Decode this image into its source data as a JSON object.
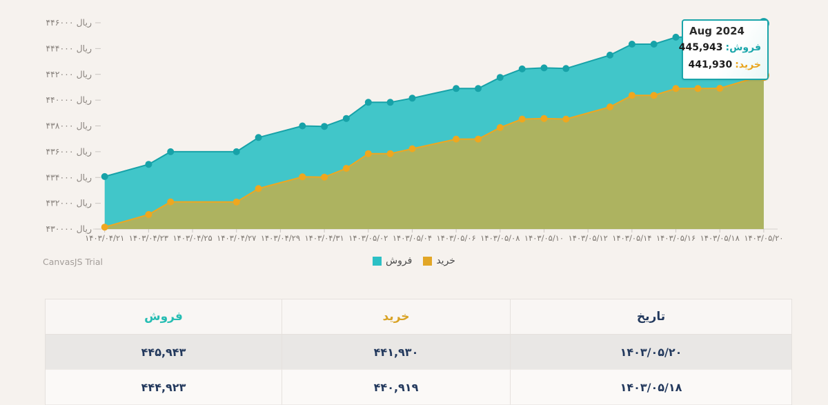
{
  "chart": {
    "watermark": "CanvasJS Trial",
    "tooltip": {
      "title": "Aug 2024",
      "rows": [
        {
          "label": "فروش:",
          "value": "445,943",
          "color": "#1aa6ab"
        },
        {
          "label": "خرید:",
          "value": "441,930",
          "color": "#e9a51e"
        }
      ]
    },
    "legend": [
      {
        "label": "فروش",
        "color": "#2cc0c5"
      },
      {
        "label": "خرید",
        "color": "#e2a626"
      }
    ]
  },
  "chart_data": {
    "type": "area",
    "title": "",
    "ylabel": "ریال",
    "ylim": [
      430000,
      446000
    ],
    "y_tick_step": 2000,
    "grid": false,
    "legend_position": "bottom",
    "y_ticks": [
      "۴۴۶۰۰۰ ریال",
      "۴۴۴۰۰۰ ریال",
      "۴۴۲۰۰۰ ریال",
      "۴۴۰۰۰۰ ریال",
      "۴۳۸۰۰۰ ریال",
      "۴۳۶۰۰۰ ریال",
      "۴۳۴۰۰۰ ریال",
      "۴۳۲۰۰۰ ریال",
      "۴۳۰۰۰۰ ریال"
    ],
    "x_ticks": [
      {
        "label": "۱۴۰۳/۰۴/۲۱",
        "d": 0
      },
      {
        "label": "۱۴۰۳/۰۴/۲۳",
        "d": 2
      },
      {
        "label": "۱۴۰۳/۰۴/۲۵",
        "d": 4
      },
      {
        "label": "۱۴۰۳/۰۴/۲۷",
        "d": 6
      },
      {
        "label": "۱۴۰۳/۰۴/۲۹",
        "d": 8
      },
      {
        "label": "۱۴۰۳/۰۴/۳۱",
        "d": 10
      },
      {
        "label": "۱۴۰۳/۰۵/۰۲",
        "d": 12
      },
      {
        "label": "۱۴۰۳/۰۵/۰۴",
        "d": 14
      },
      {
        "label": "۱۴۰۳/۰۵/۰۶",
        "d": 16
      },
      {
        "label": "۱۴۰۳/۰۵/۰۸",
        "d": 18
      },
      {
        "label": "۱۴۰۳/۰۵/۱۰",
        "d": 20
      },
      {
        "label": "۱۴۰۳/۰۵/۱۲",
        "d": 22
      },
      {
        "label": "۱۴۰۳/۰۵/۱۴",
        "d": 24
      },
      {
        "label": "۱۴۰۳/۰۵/۱۶",
        "d": 26
      },
      {
        "label": "۱۴۰۳/۰۵/۱۸",
        "d": 28
      },
      {
        "label": "۱۴۰۳/۰۵/۲۰",
        "d": 30
      }
    ],
    "dates": [
      "۱۴۰۳/۰۴/۲۱",
      "۱۴۰۳/۰۴/۲۳",
      "۱۴۰۳/۰۴/۲۴",
      "۱۴۰۳/۰۴/۲۷",
      "۱۴۰۳/۰۴/۲۸",
      "۱۴۰۳/۰۴/۳۰",
      "۱۴۰۳/۰۴/۳۱",
      "۱۴۰۳/۰۵/۰۱",
      "۱۴۰۳/۰۵/۰۲",
      "۱۴۰۳/۰۵/۰۳",
      "۱۴۰۳/۰۵/۰۴",
      "۱۴۰۳/۰۵/۰۶",
      "۱۴۰۳/۰۵/۰۷",
      "۱۴۰۳/۰۵/۰۸",
      "۱۴۰۳/۰۵/۰۹",
      "۱۴۰۳/۰۵/۱۰",
      "۱۴۰۳/۰۵/۱۱",
      "۱۴۰۳/۰۵/۱۳",
      "۱۴۰۳/۰۵/۱۴",
      "۱۴۰۳/۰۵/۱۵",
      "۱۴۰۳/۰۵/۱۶",
      "۱۴۰۳/۰۵/۱۷",
      "۱۴۰۳/۰۵/۱۸",
      "۱۴۰۳/۰۵/۲۰"
    ],
    "day_offsets": [
      0,
      2,
      3,
      6,
      7,
      9,
      10,
      11,
      12,
      13,
      14,
      16,
      17,
      18,
      19,
      20,
      21,
      23,
      24,
      25,
      26,
      27,
      28,
      30
    ],
    "series": [
      {
        "name": "فروش",
        "line_color": "#17a2a8",
        "fill_color": "#41c6c9",
        "values": [
          434070,
          435020,
          436000,
          436000,
          437100,
          438000,
          437960,
          438580,
          439830,
          439830,
          440150,
          440900,
          440900,
          441760,
          442420,
          442500,
          442450,
          443490,
          444340,
          444340,
          444880,
          444900,
          444923,
          445943
        ]
      },
      {
        "name": "خرید",
        "line_color": "#efa71f",
        "fill_color": "rgba(240,168,32,0.62)",
        "values": [
          430150,
          431130,
          432110,
          432100,
          433140,
          434050,
          434030,
          434710,
          435850,
          435850,
          436230,
          436980,
          436980,
          437870,
          438530,
          438580,
          438530,
          439470,
          440370,
          440370,
          440900,
          440900,
          440919,
          441930
        ]
      }
    ]
  },
  "table": {
    "headers": [
      {
        "label": "فروش",
        "color": "#26bdb3"
      },
      {
        "label": "خرید",
        "color": "#d9a326"
      },
      {
        "label": "تاریخ",
        "color": "#23395d"
      }
    ],
    "rows": [
      {
        "cells": [
          "۴۴۵,۹۴۳",
          "۴۴۱,۹۳۰",
          "۱۴۰۳/۰۵/۲۰"
        ]
      },
      {
        "cells": [
          "۴۴۴,۹۲۳",
          "۴۴۰,۹۱۹",
          "۱۴۰۳/۰۵/۱۸"
        ]
      }
    ]
  }
}
